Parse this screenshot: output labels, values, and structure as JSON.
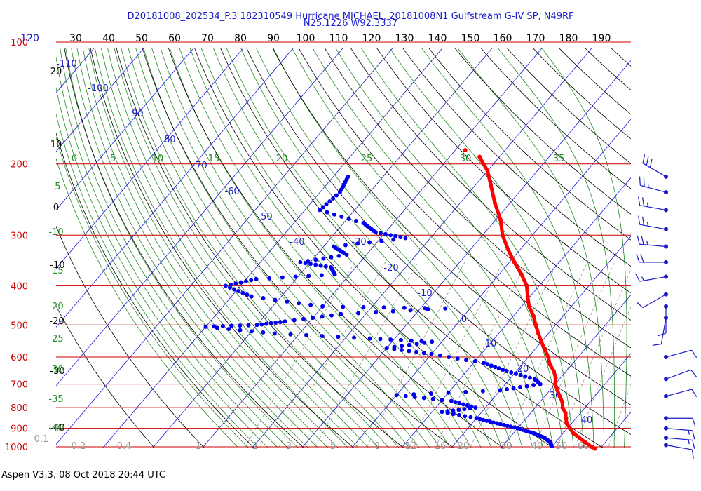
{
  "header": {
    "title_line1": "D20181008_202534_P.3 182310549 Hurricane MICHAEL, 20181008N1 Gulfstream G-IV SP, N49RF",
    "title_line2": "N25.1226 W92.3337"
  },
  "footer": {
    "text": "Aspen V3.3, 08 Oct 2018  20:44 UTC"
  },
  "colors": {
    "temperature": "#ff0000",
    "dewpoint": "#0000ee",
    "isobar": "#cc0000",
    "isotherm": "#1a1acc",
    "dry_adiabat": "#000000",
    "moist_adiabat": "#228b22",
    "mixing_ratio": "#999999",
    "wind_barb": "#1a1acc"
  },
  "chart_data": {
    "type": "scatter",
    "subtype": "skew-T log-P thermodynamic diagram",
    "y_axis": {
      "label": "",
      "scale": "log",
      "range_hpa": [
        1000,
        100
      ],
      "isobar_labels": [
        "100",
        "200",
        "300",
        "400",
        "500",
        "600",
        "700",
        "800",
        "900",
        "1000"
      ]
    },
    "top_axis": {
      "label": "",
      "ticks": [
        "-120",
        "30",
        "40",
        "50",
        "60",
        "70",
        "80",
        "90",
        "100",
        "110",
        "120",
        "130",
        "140",
        "150",
        "160",
        "170",
        "180",
        "190"
      ]
    },
    "isotherm_labels": [
      "-110",
      "-100",
      "-90",
      "-80",
      "-70",
      "-60",
      "-50",
      "-40",
      "-30",
      "-20",
      "-10",
      "0",
      "10",
      "20",
      "30",
      "40"
    ],
    "dry_adiabat_labels": [
      "20",
      "10",
      "0",
      "-10",
      "-20",
      "-30",
      "-40"
    ],
    "moist_adiabat_labels": [
      "0",
      "5",
      "10",
      "15",
      "20",
      "25",
      "30",
      "35"
    ],
    "moist_side_labels": [
      "-5",
      "-10",
      "-15",
      "-20",
      "-25",
      "-30",
      "-35",
      "-40"
    ],
    "mixing_ratio_labels": [
      "0.1",
      "0.2",
      "0.4",
      "1",
      "2",
      "3",
      "5",
      "8",
      "12",
      "16",
      "20",
      "30",
      "40",
      "50",
      "60"
    ],
    "grid": true,
    "series": [
      {
        "name": "",
        "role": "temperature",
        "color": "#ff0000",
        "points": [
          {
            "p": 192,
            "t": -44
          },
          {
            "p": 208,
            "t": -40
          },
          {
            "p": 225,
            "t": -37
          },
          {
            "p": 250,
            "t": -33
          },
          {
            "p": 275,
            "t": -29
          },
          {
            "p": 300,
            "t": -26
          },
          {
            "p": 325,
            "t": -22.5
          },
          {
            "p": 350,
            "t": -19
          },
          {
            "p": 375,
            "t": -15.5
          },
          {
            "p": 400,
            "t": -12.5
          },
          {
            "p": 425,
            "t": -10.5
          },
          {
            "p": 450,
            "t": -8.5
          },
          {
            "p": 475,
            "t": -6
          },
          {
            "p": 500,
            "t": -4
          },
          {
            "p": 525,
            "t": -2
          },
          {
            "p": 550,
            "t": 0
          },
          {
            "p": 575,
            "t": 2
          },
          {
            "p": 600,
            "t": 4
          },
          {
            "p": 625,
            "t": 5.5
          },
          {
            "p": 650,
            "t": 7.5
          },
          {
            "p": 675,
            "t": 9
          },
          {
            "p": 700,
            "t": 10
          },
          {
            "p": 725,
            "t": 11.5
          },
          {
            "p": 750,
            "t": 13
          },
          {
            "p": 775,
            "t": 14.5
          },
          {
            "p": 800,
            "t": 15.5
          },
          {
            "p": 825,
            "t": 17
          },
          {
            "p": 850,
            "t": 18
          },
          {
            "p": 875,
            "t": 19
          },
          {
            "p": 900,
            "t": 20.5
          },
          {
            "p": 925,
            "t": 22
          },
          {
            "p": 950,
            "t": 24
          },
          {
            "p": 975,
            "t": 26
          },
          {
            "p": 1000,
            "t": 28
          },
          {
            "p": 1010,
            "t": 29
          }
        ],
        "isolated_point": {
          "p": 185,
          "t": -48
        }
      },
      {
        "name": "",
        "role": "dewpoint",
        "color": "#0000ee",
        "points": [
          {
            "p": 215,
            "td": -67
          },
          {
            "p": 235,
            "td": -66
          },
          {
            "p": 260,
            "td": -67
          },
          {
            "p": 280,
            "td": -56
          },
          {
            "p": 295,
            "td": -52
          },
          {
            "p": 305,
            "td": -45
          },
          {
            "p": 320,
            "td": -58
          },
          {
            "p": 335,
            "td": -54
          },
          {
            "p": 350,
            "td": -62
          },
          {
            "p": 360,
            "td": -55
          },
          {
            "p": 375,
            "td": -53
          },
          {
            "p": 385,
            "td": -68
          },
          {
            "p": 400,
            "td": -73
          },
          {
            "p": 425,
            "td": -66
          },
          {
            "p": 450,
            "td": -50
          },
          {
            "p": 455,
            "td": -25
          },
          {
            "p": 470,
            "td": -45
          },
          {
            "p": 490,
            "td": -55
          },
          {
            "p": 500,
            "td": -60
          },
          {
            "p": 505,
            "td": -70
          },
          {
            "p": 525,
            "td": -55
          },
          {
            "p": 540,
            "td": -35
          },
          {
            "p": 550,
            "td": -22
          },
          {
            "p": 570,
            "td": -30
          },
          {
            "p": 590,
            "td": -20
          },
          {
            "p": 620,
            "td": -8
          },
          {
            "p": 650,
            "td": -2
          },
          {
            "p": 680,
            "td": 5
          },
          {
            "p": 700,
            "td": 7
          },
          {
            "p": 725,
            "td": 0
          },
          {
            "p": 745,
            "td": -20
          },
          {
            "p": 770,
            "td": -8
          },
          {
            "p": 800,
            "td": -2
          },
          {
            "p": 820,
            "td": -8
          },
          {
            "p": 850,
            "td": 0
          },
          {
            "p": 875,
            "td": 5
          },
          {
            "p": 900,
            "td": 10
          },
          {
            "p": 925,
            "td": 14
          },
          {
            "p": 950,
            "td": 17
          },
          {
            "p": 975,
            "td": 19
          },
          {
            "p": 1000,
            "td": 20
          }
        ]
      }
    ],
    "wind_barbs": [
      {
        "p": 215,
        "dir": 300,
        "kt": 30
      },
      {
        "p": 235,
        "dir": 285,
        "kt": 25
      },
      {
        "p": 260,
        "dir": 280,
        "kt": 25
      },
      {
        "p": 290,
        "dir": 280,
        "kt": 25
      },
      {
        "p": 320,
        "dir": 275,
        "kt": 25
      },
      {
        "p": 350,
        "dir": 270,
        "kt": 20
      },
      {
        "p": 380,
        "dir": 260,
        "kt": 15
      },
      {
        "p": 420,
        "dir": 240,
        "kt": 10
      },
      {
        "p": 450,
        "dir": 180,
        "kt": 10
      },
      {
        "p": 480,
        "dir": 190,
        "kt": 10
      },
      {
        "p": 600,
        "dir": 75,
        "kt": 10
      },
      {
        "p": 680,
        "dir": 70,
        "kt": 10
      },
      {
        "p": 750,
        "dir": 75,
        "kt": 10
      },
      {
        "p": 850,
        "dir": 90,
        "kt": 10
      },
      {
        "p": 900,
        "dir": 95,
        "kt": 15
      },
      {
        "p": 950,
        "dir": 95,
        "kt": 15
      },
      {
        "p": 990,
        "dir": 100,
        "kt": 10
      }
    ]
  }
}
